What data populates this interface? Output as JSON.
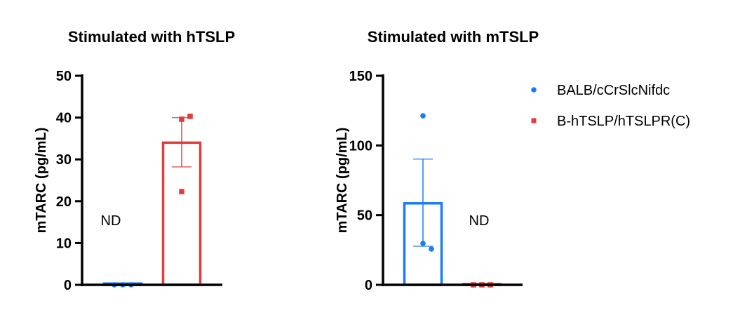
{
  "chart_data": [
    {
      "type": "bar",
      "title": "Stimulated with hTSLP",
      "ylabel": "mTARC (pg/mL)",
      "ylim": [
        0,
        50
      ],
      "yticks": [
        0,
        10,
        20,
        30,
        40,
        50
      ],
      "series": [
        {
          "name": "BALB/cCrSlcNifdc",
          "mean": 0.3,
          "sem_low": 0.3,
          "sem_high": 0.3,
          "points": [
            0,
            0,
            0
          ],
          "annotation": "ND"
        },
        {
          "name": "B-hTSLP/hTSLPR(C)",
          "mean": 34,
          "sem_low": 28.2,
          "sem_high": 40,
          "points": [
            39.6,
            40.3,
            22.3
          ]
        }
      ]
    },
    {
      "type": "bar",
      "title": "Stimulated with mTSLP",
      "ylabel": "mTARC (pg/mL)",
      "ylim": [
        0,
        150
      ],
      "yticks": [
        0,
        50,
        100,
        150
      ],
      "series": [
        {
          "name": "BALB/cCrSlcNifdc",
          "mean": 58.5,
          "sem_low": 27.7,
          "sem_high": 90.2,
          "points": [
            121.3,
            29.7,
            25.7
          ]
        },
        {
          "name": "B-hTSLP/hTSLPR(C)",
          "mean": 0.5,
          "sem_low": 0.5,
          "sem_high": 0.5,
          "points": [
            0,
            0,
            0
          ],
          "annotation": "ND"
        }
      ]
    }
  ],
  "legend": {
    "placement": "right",
    "items": [
      {
        "label": "BALB/cCrSlcNifdc",
        "marker": "circle",
        "color": "#1a7cf7"
      },
      {
        "label": "B-hTSLP/hTSLPR(C)",
        "marker": "square",
        "color": "#e23d3d"
      }
    ]
  }
}
